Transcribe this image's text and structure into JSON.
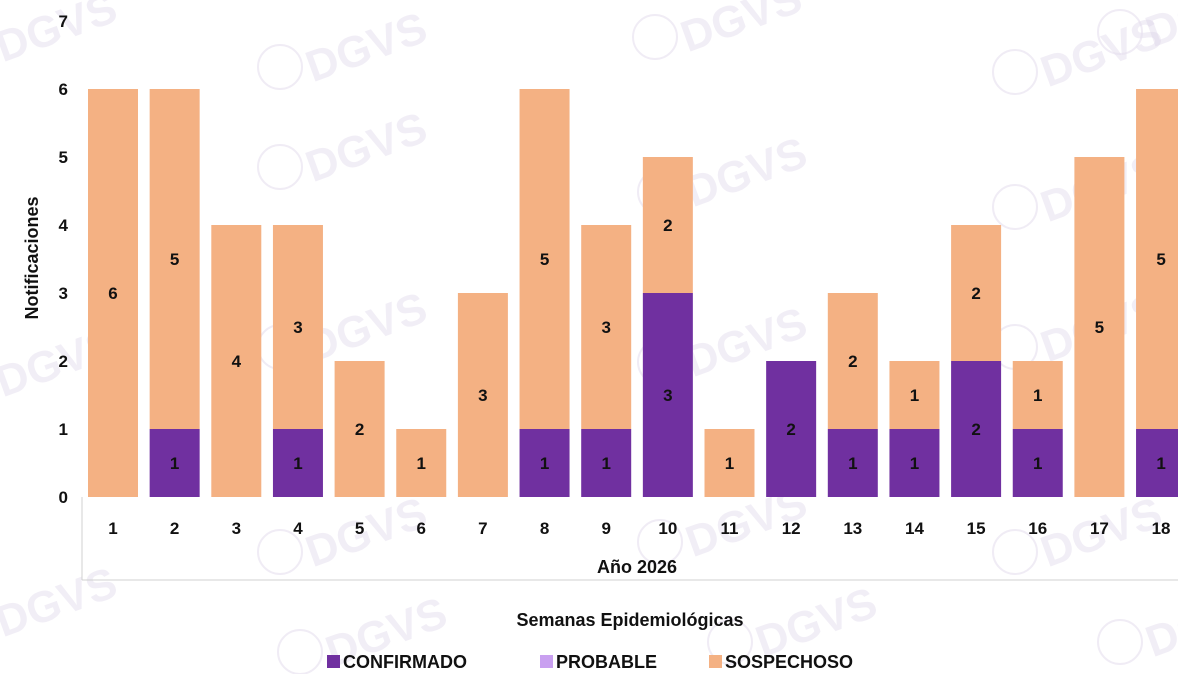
{
  "chart_data": {
    "type": "bar",
    "stacked": true,
    "categories": [
      "1",
      "2",
      "3",
      "4",
      "5",
      "6",
      "7",
      "8",
      "9",
      "10",
      "11",
      "12",
      "13",
      "14",
      "15",
      "16",
      "17",
      "18"
    ],
    "series": [
      {
        "name": "CONFIRMADO",
        "color": "#7030a0",
        "values": [
          0,
          1,
          0,
          1,
          0,
          0,
          0,
          1,
          1,
          3,
          0,
          2,
          1,
          1,
          2,
          1,
          0,
          1
        ]
      },
      {
        "name": "PROBABLE",
        "color": "#c9a0f0",
        "values": [
          0,
          0,
          0,
          0,
          0,
          0,
          0,
          0,
          0,
          0,
          0,
          0,
          0,
          0,
          0,
          0,
          0,
          0
        ]
      },
      {
        "name": "SOSPECHOSO",
        "color": "#f4b183",
        "values": [
          6,
          5,
          4,
          3,
          2,
          1,
          3,
          5,
          3,
          2,
          1,
          0,
          2,
          1,
          2,
          1,
          5,
          5
        ]
      }
    ],
    "ylabel": "Notificaciones",
    "xlabel_group": "Año 2026",
    "xlabel": "Semanas Epidemiológicas",
    "ylim": [
      0,
      7
    ],
    "yticks": [
      "0",
      "1",
      "2",
      "3",
      "4",
      "5",
      "6",
      "7"
    ],
    "grid": false,
    "legend_position": "bottom",
    "watermark": "DGVS"
  }
}
